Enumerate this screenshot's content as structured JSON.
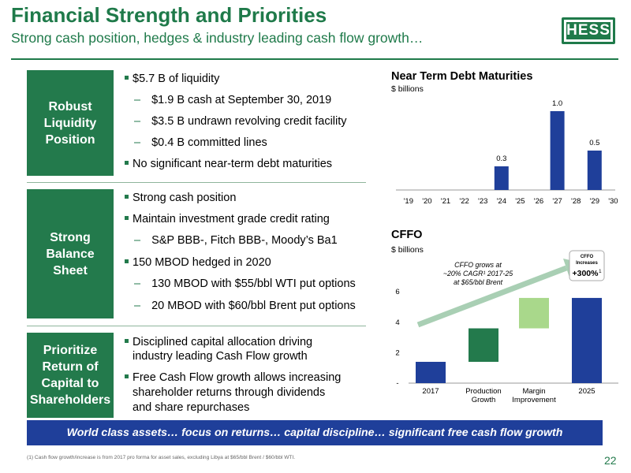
{
  "header": {
    "title": "Financial Strength and Priorities",
    "subtitle": "Strong cash position, hedges & industry leading cash flow growth…",
    "logo_text": "HESS"
  },
  "sections": [
    {
      "label_lines": [
        "Robust",
        "Liquidity",
        "Position"
      ],
      "bullets": [
        {
          "text": "$5.7 B of liquidity",
          "level": 1
        },
        {
          "text": "$1.9 B cash at September 30, 2019",
          "level": 2
        },
        {
          "text": "$3.5 B undrawn revolving credit facility",
          "level": 2
        },
        {
          "text": "$0.4 B committed lines",
          "level": 2
        },
        {
          "text": "No significant near-term debt maturities",
          "level": 1
        }
      ]
    },
    {
      "label_lines": [
        "Strong",
        "Balance",
        "Sheet"
      ],
      "bullets": [
        {
          "text": "Strong cash position",
          "level": 1
        },
        {
          "text": "Maintain investment grade credit rating",
          "level": 1
        },
        {
          "text": "S&P BBB-, Fitch BBB-, Moody’s Ba1",
          "level": 2
        },
        {
          "text": "150 MBOD hedged in 2020",
          "level": 1
        },
        {
          "text": "130 MBOD with $55/bbl WTI put options",
          "level": 2
        },
        {
          "text": "20 MBOD with $60/bbl Brent put options",
          "level": 2
        }
      ]
    },
    {
      "label_lines": [
        "Prioritize",
        "Return of",
        "Capital to",
        "Shareholders"
      ],
      "bullets": [
        {
          "text_lines": [
            "Disciplined capital allocation driving",
            "industry leading Cash Flow growth"
          ],
          "level": 1
        },
        {
          "text_lines": [
            "Free Cash Flow growth allows increasing",
            "shareholder returns through dividends",
            "and share repurchases"
          ],
          "level": 1
        }
      ]
    }
  ],
  "chart_data": [
    {
      "type": "bar",
      "title": "Near Term Debt Maturities",
      "unit": "$ billions",
      "categories": [
        "'19",
        "'20",
        "'21",
        "'22",
        "'23",
        "'24",
        "'25",
        "'26",
        "'27",
        "'28",
        "'29",
        "'30"
      ],
      "values": [
        0,
        0,
        0,
        0,
        0,
        0.3,
        0,
        0,
        1.0,
        0,
        0.5,
        0
      ],
      "data_labels": [
        "",
        "",
        "",
        "",
        "",
        "0.3",
        "",
        "",
        "1.0",
        "",
        "0.5",
        ""
      ],
      "color": "#1f3f9a"
    },
    {
      "type": "bar",
      "subtype": "waterfall",
      "title": "CFFO",
      "unit": "$ billions",
      "categories": [
        "2017",
        "Production Growth",
        "Margin Improvement",
        "2025"
      ],
      "category_label_lines": [
        [
          "2017"
        ],
        [
          "Production",
          "Growth"
        ],
        [
          "Margin",
          "Improvement"
        ],
        [
          "2025"
        ]
      ],
      "bars": [
        {
          "start": 0,
          "end": 1.4,
          "color": "#1f3f9a"
        },
        {
          "start": 1.4,
          "end": 3.6,
          "color": "#237a4c"
        },
        {
          "start": 3.6,
          "end": 5.6,
          "color": "#a9d88b"
        },
        {
          "start": 0,
          "end": 5.6,
          "color": "#1f3f9a"
        }
      ],
      "y_ticks": [
        "-",
        "2",
        "4",
        "6"
      ],
      "y_tick_values": [
        0,
        2,
        4,
        6
      ],
      "ylim": [
        0,
        6
      ],
      "annotation_lines": [
        "CFFO grows at",
        "~20% CAGR¹ 2017-25",
        "at $65/bbl Brent"
      ],
      "callout": {
        "title_lines": [
          "CFFO",
          "Increases"
        ],
        "value": "+300%",
        "sup": "1"
      }
    }
  ],
  "banner": "World class assets… focus on returns… capital discipline… significant free cash flow growth",
  "footnote": "(1) Cash flow growth/increase is from 2017 pro forma for asset sales, excluding Libya at $65/bbl Brent / $60/bbl WTI.",
  "page_number": "22",
  "colors": {
    "green": "#237a4c",
    "navy": "#1f3f9a",
    "light_green": "#a9d88b"
  }
}
